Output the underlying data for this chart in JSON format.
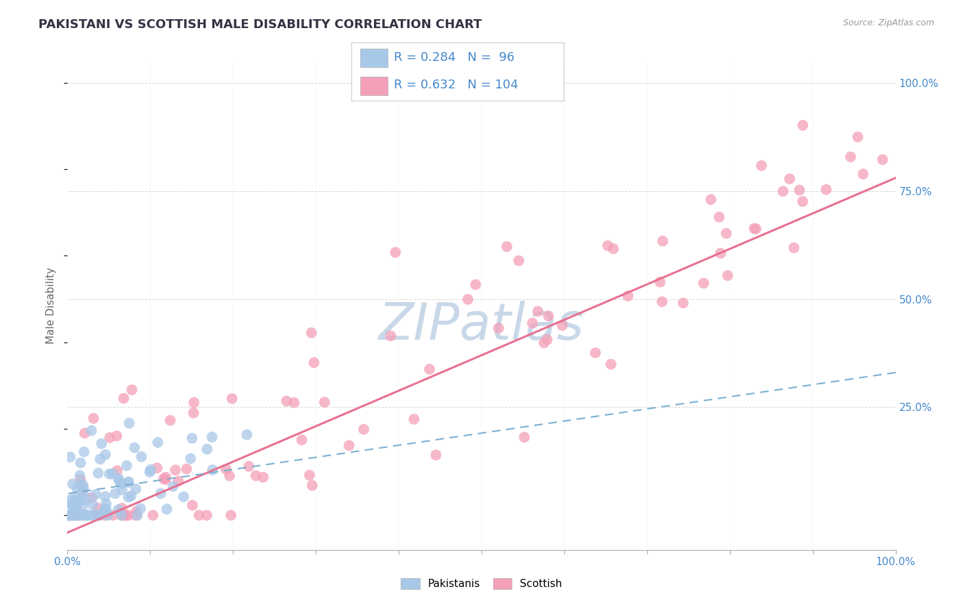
{
  "title": "PAKISTANI VS SCOTTISH MALE DISABILITY CORRELATION CHART",
  "source_text": "Source: ZipAtlas.com",
  "ylabel": "Male Disability",
  "xlim": [
    0,
    100
  ],
  "ylim": [
    -8,
    105
  ],
  "pakistani_R": 0.284,
  "pakistani_N": 96,
  "scottish_R": 0.632,
  "scottish_N": 104,
  "pakistani_color": "#a8c8e8",
  "scottish_color": "#f4a0b8",
  "pakistani_line_color": "#7aaed0",
  "scottish_line_color": "#e87090",
  "title_color": "#333344",
  "watermark_color": "#c8d8e8",
  "background_color": "#ffffff",
  "grid_color": "#cccccc",
  "y_ticks": [
    0,
    25,
    50,
    75,
    100
  ],
  "y_tick_labels": [
    "",
    "25.0%",
    "50.0%",
    "75.0%",
    "100.0%"
  ]
}
